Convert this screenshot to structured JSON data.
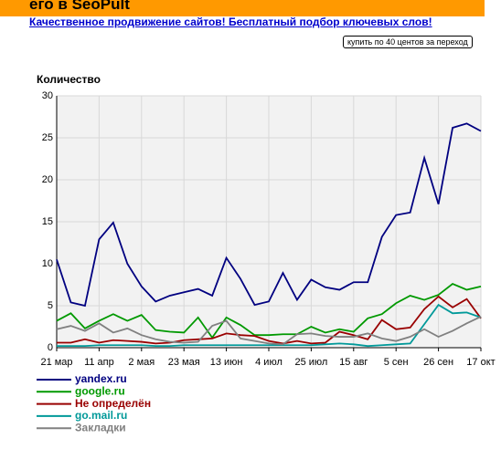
{
  "header": {
    "title": "его в SeoPult",
    "link": "Качественное продвижение сайтов! Бесплатный подбор ключевых слов!",
    "button": "купить по 40 центов за переход"
  },
  "chart_data": {
    "type": "line",
    "ylabel": "Количество",
    "categories": [
      "21 мар",
      null,
      null,
      "11 апр",
      null,
      null,
      "2 мая",
      null,
      null,
      "23 мая",
      null,
      null,
      "13 июн",
      null,
      null,
      "4 июл",
      null,
      null,
      "25 июл",
      null,
      null,
      "15 авг",
      null,
      null,
      "5 сен",
      null,
      null,
      "26 сен",
      null,
      null,
      "17 окт"
    ],
    "ylim": [
      0,
      30
    ],
    "yticks": [
      0,
      5,
      10,
      15,
      20,
      25,
      30
    ],
    "grid": true,
    "series": [
      {
        "name": "yandex.ru",
        "color": "#000080",
        "values": [
          10.5,
          5.4,
          5,
          12.9,
          14.9,
          10,
          7.3,
          5.5,
          6.2,
          6.6,
          7,
          6.2,
          10.7,
          8.2,
          5.1,
          5.5,
          8.9,
          5.7,
          8.1,
          7.2,
          6.9,
          7.8,
          7.8,
          13.2,
          15.8,
          16.1,
          22.6,
          17.1,
          26.2,
          26.7,
          25.8
        ]
      },
      {
        "name": "google.ru",
        "color": "#009900",
        "values": [
          3.2,
          4.1,
          2.3,
          3.2,
          4,
          3.2,
          3.9,
          2.1,
          1.9,
          1.8,
          3.6,
          1.2,
          3.6,
          2.7,
          1.5,
          1.5,
          1.6,
          1.6,
          2.5,
          1.8,
          2.2,
          1.9,
          3.5,
          4,
          5.3,
          6.2,
          5.7,
          6.3,
          7.6,
          6.9,
          7.3
        ]
      },
      {
        "name": "Не определён",
        "color": "#990000",
        "values": [
          0.6,
          0.6,
          1,
          0.6,
          0.9,
          0.8,
          0.7,
          0.5,
          0.6,
          0.9,
          1,
          1.1,
          1.7,
          1.5,
          1.4,
          0.8,
          0.5,
          0.8,
          0.5,
          0.6,
          1.9,
          1.5,
          1,
          3.3,
          2.2,
          2.4,
          4.6,
          6.1,
          4.8,
          5.8,
          3.5
        ]
      },
      {
        "name": "go.mail.ru",
        "color": "#009999",
        "values": [
          0.2,
          0.2,
          0.2,
          0.3,
          0.3,
          0.3,
          0.3,
          0.2,
          0.2,
          0.3,
          0.3,
          0.3,
          0.3,
          0.3,
          0.3,
          0.3,
          0.3,
          0.3,
          0.3,
          0.4,
          0.5,
          0.4,
          0.2,
          0.3,
          0.4,
          0.5,
          2.8,
          5.1,
          4.1,
          4.2,
          3.6
        ]
      },
      {
        "name": "Закладки",
        "color": "#808080",
        "values": [
          2.2,
          2.6,
          2,
          2.9,
          1.8,
          2.3,
          1.5,
          1,
          0.7,
          0.6,
          0.7,
          2.6,
          3.2,
          1.1,
          0.8,
          0.5,
          0.4,
          1.6,
          1.7,
          1.4,
          1.3,
          1.3,
          1.7,
          1.1,
          0.8,
          1.3,
          2.2,
          1.3,
          2,
          2.9,
          3.7
        ]
      }
    ]
  }
}
